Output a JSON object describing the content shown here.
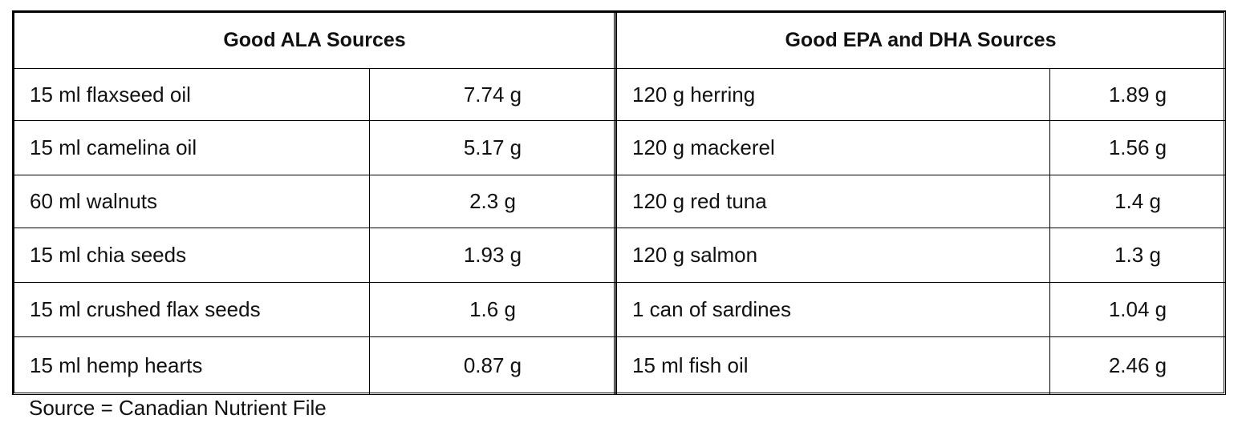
{
  "table": {
    "headers": [
      "Good ALA Sources",
      "Good EPA and DHA Sources"
    ],
    "rows": [
      [
        "15 ml flaxseed oil",
        "7.74 g",
        "120 g herring",
        "1.89 g"
      ],
      [
        "15 ml camelina oil",
        "5.17 g",
        "120 g mackerel",
        "1.56 g"
      ],
      [
        "60 ml walnuts",
        "2.3 g",
        "120 g red tuna",
        "1.4 g"
      ],
      [
        "15 ml chia seeds",
        "1.93 g",
        "120 g salmon",
        "1.3 g"
      ],
      [
        "15 ml crushed flax seeds",
        "1.6 g",
        "1 can of sardines",
        "1.04 g"
      ],
      [
        "15 ml hemp hearts",
        "0.87 g",
        "15 ml fish oil",
        "2.46 g"
      ]
    ]
  },
  "footer": "Source = Canadian Nutrient File"
}
